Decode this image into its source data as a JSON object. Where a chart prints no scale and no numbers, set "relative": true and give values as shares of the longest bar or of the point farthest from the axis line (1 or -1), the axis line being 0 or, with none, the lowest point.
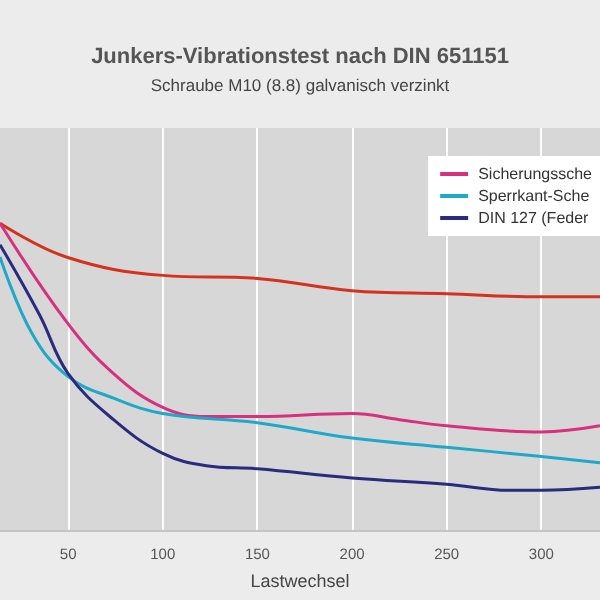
{
  "chart_data": {
    "type": "line",
    "title": "Junkers-Vibrationstest nach DIN 651151",
    "subtitle": "Schraube M10 (8.8) galvanisch verzinkt",
    "xlabel": "Lastwechsel",
    "relative": true,
    "xlim": [
      14,
      331
    ],
    "xticks": [
      50,
      100,
      150,
      200,
      250,
      300
    ],
    "grid": true,
    "legend": "top right",
    "series": [
      {
        "color": "#d4321e",
        "x": [
          14,
          49,
          100,
          150,
          200,
          250,
          300,
          331
        ],
        "values": [
          1.0,
          0.89,
          0.83,
          0.82,
          0.78,
          0.77,
          0.76,
          0.76
        ]
      },
      {
        "name": "Sicherungssche",
        "color": "#d6307f",
        "x": [
          14,
          49,
          74,
          100,
          123,
          150,
          200,
          225,
          250,
          300,
          331
        ],
        "values": [
          1.0,
          0.68,
          0.51,
          0.4,
          0.37,
          0.37,
          0.38,
          0.36,
          0.34,
          0.32,
          0.34
        ]
      },
      {
        "name": "Sperrkant-Sche",
        "color": "#1fa8c9",
        "x": [
          14,
          31,
          50,
          74,
          100,
          150,
          200,
          250,
          300,
          331
        ],
        "values": [
          0.89,
          0.64,
          0.5,
          0.43,
          0.38,
          0.35,
          0.3,
          0.27,
          0.24,
          0.22
        ]
      },
      {
        "name": "DIN 127 (Feder",
        "color": "#2a2a7e",
        "x": [
          14,
          35,
          50,
          74,
          100,
          123,
          150,
          200,
          250,
          283,
          300,
          331
        ],
        "values": [
          0.93,
          0.7,
          0.51,
          0.36,
          0.25,
          0.21,
          0.2,
          0.17,
          0.15,
          0.13,
          0.13,
          0.14
        ]
      }
    ]
  }
}
